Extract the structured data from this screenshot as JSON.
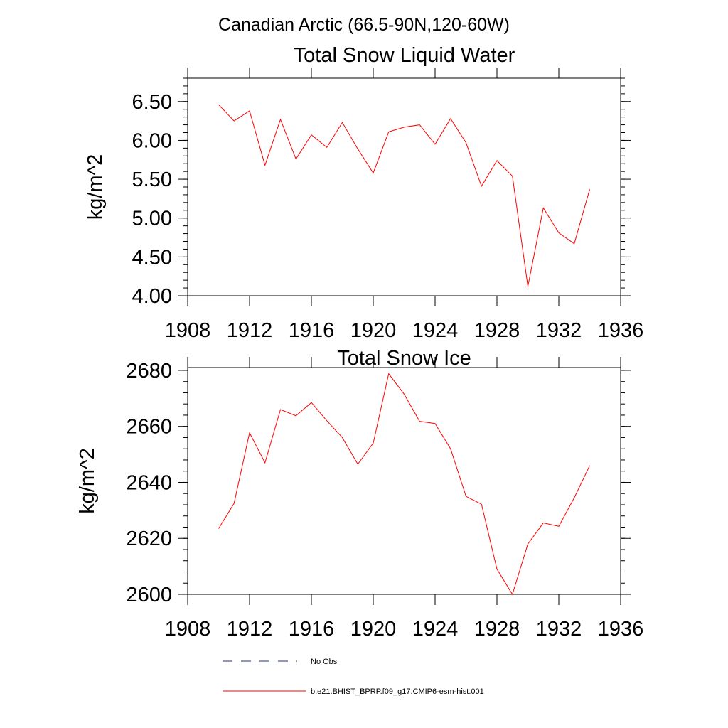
{
  "figure": {
    "title": "Canadian Arctic (66.5-90N,120-60W)"
  },
  "colors": {
    "model_line": "#ff0000",
    "obs_line": "#27306b",
    "axis": "#000000"
  },
  "legend": {
    "placement": "bottom",
    "entries": [
      {
        "label": "No Obs",
        "style": "dashed",
        "color": "#27306b"
      },
      {
        "label": "b.e21.BHIST_BPRP.f09_g17.CMIP6-esm-hist.001",
        "style": "solid",
        "color": "#ff0000"
      }
    ]
  },
  "chart_data": [
    {
      "type": "line",
      "title": "Total Snow Liquid Water",
      "xlabel": "",
      "ylabel": "kg/m^2",
      "xlim": [
        1908,
        1936
      ],
      "ylim": [
        4.0,
        6.8
      ],
      "xticks": [
        1908,
        1912,
        1916,
        1920,
        1924,
        1928,
        1932,
        1936
      ],
      "xtick_labels": [
        "1908",
        "1912",
        "1916",
        "1920",
        "1924",
        "1928",
        "1932",
        "1936"
      ],
      "yticks": [
        4.0,
        4.5,
        5.0,
        5.5,
        6.0,
        6.5
      ],
      "ytick_labels": [
        "4.00",
        "4.50",
        "5.00",
        "5.50",
        "6.00",
        "6.50"
      ],
      "x": [
        1910,
        1911,
        1912,
        1913,
        1914,
        1915,
        1916,
        1917,
        1918,
        1919,
        1920,
        1921,
        1922,
        1923,
        1924,
        1925,
        1926,
        1927,
        1928,
        1929,
        1930,
        1931,
        1932,
        1933,
        1934
      ],
      "series": [
        {
          "name": "b.e21.BHIST_BPRP.f09_g17.CMIP6-esm-hist.001",
          "values": [
            6.46,
            6.25,
            6.38,
            5.68,
            6.27,
            5.76,
            6.07,
            5.91,
            6.23,
            5.89,
            5.58,
            6.11,
            6.17,
            6.2,
            5.95,
            6.28,
            5.97,
            5.41,
            5.74,
            5.54,
            4.12,
            5.13,
            4.81,
            4.67,
            5.37
          ]
        }
      ]
    },
    {
      "type": "line",
      "title": "Total Snow Ice",
      "xlabel": "",
      "ylabel": "kg/m^2",
      "xlim": [
        1908,
        1936
      ],
      "ylim": [
        2600,
        2681
      ],
      "xticks": [
        1908,
        1912,
        1916,
        1920,
        1924,
        1928,
        1932,
        1936
      ],
      "xtick_labels": [
        "1908",
        "1912",
        "1916",
        "1920",
        "1924",
        "1928",
        "1932",
        "1936"
      ],
      "yticks": [
        2600,
        2620,
        2640,
        2660,
        2680
      ],
      "ytick_labels": [
        "2600",
        "2620",
        "2640",
        "2660",
        "2680"
      ],
      "x": [
        1910,
        1911,
        1912,
        1913,
        1914,
        1915,
        1916,
        1917,
        1918,
        1919,
        1920,
        1921,
        1922,
        1923,
        1924,
        1925,
        1926,
        1927,
        1928,
        1929,
        1930,
        1931,
        1932,
        1933,
        1934
      ],
      "series": [
        {
          "name": "b.e21.BHIST_BPRP.f09_g17.CMIP6-esm-hist.001",
          "values": [
            2623.5,
            2632.5,
            2657.7,
            2647.0,
            2666.0,
            2663.8,
            2668.5,
            2662.0,
            2656.0,
            2646.5,
            2654.0,
            2678.8,
            2671.5,
            2661.8,
            2661.0,
            2652.0,
            2635.0,
            2632.2,
            2609.0,
            2600.0,
            2618.0,
            2625.5,
            2624.3,
            2634.5,
            2646.0
          ]
        }
      ]
    }
  ]
}
